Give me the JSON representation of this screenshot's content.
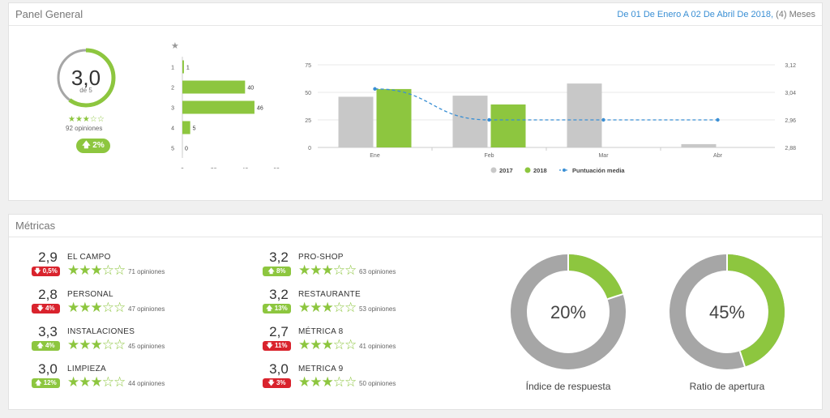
{
  "header": {
    "title": "Panel General",
    "date_range_link": "De 01 De Enero A 02 De Abril De 2018,",
    "date_range_extra": " (4) Meses"
  },
  "summary": {
    "rating": "3,0",
    "rating_sub": "de 5",
    "rating_fraction": 0.6,
    "stars": "★★★☆☆",
    "opinions": "92 opiniones",
    "change": "2%",
    "change_icon": "arrow-up-icon"
  },
  "colors": {
    "green": "#8dc63f",
    "gray": "#c8c8c8",
    "blue": "#3a8fd4",
    "red": "#d9232d",
    "ring_gray": "#a6a6a6"
  },
  "chart_data": [
    {
      "type": "bar",
      "orientation": "horizontal",
      "header_icon": "star-icon",
      "categories": [
        "1",
        "2",
        "3",
        "4",
        "5"
      ],
      "values": [
        1,
        40,
        46,
        5,
        0
      ],
      "xticks": [
        "0",
        "20",
        "40",
        "60"
      ],
      "xlim": [
        0,
        60
      ]
    },
    {
      "type": "bar",
      "categories": [
        "Ene",
        "Feb",
        "Mar",
        "Abr"
      ],
      "series": [
        {
          "name": "2017",
          "type": "bar",
          "values": [
            46,
            47,
            58,
            3
          ]
        },
        {
          "name": "2018",
          "type": "bar",
          "values": [
            53,
            39,
            null,
            null
          ]
        },
        {
          "name": "Puntuación media",
          "type": "line",
          "axis": "right",
          "values": [
            3.05,
            2.96,
            2.96,
            2.96
          ]
        }
      ],
      "yticks_left": [
        "0",
        "25",
        "50",
        "75"
      ],
      "ylim_left": [
        0,
        75
      ],
      "yticks_right": [
        "2,88",
        "2,96",
        "3,04",
        "3,12"
      ],
      "ylim_right": [
        2.88,
        3.12
      ],
      "legend_position": "bottom"
    }
  ],
  "metrics_panel": {
    "title": "Métricas",
    "items": [
      {
        "score": "2,9",
        "name": "EL CAMPO",
        "change": "0,5%",
        "dir": "down",
        "stars": "★★★☆☆",
        "opinions": "71 opiniones"
      },
      {
        "score": "2,8",
        "name": "PERSONAL",
        "change": "4%",
        "dir": "down",
        "stars": "★★★☆☆",
        "opinions": "47 opiniones"
      },
      {
        "score": "3,3",
        "name": "INSTALACIONES",
        "change": "4%",
        "dir": "up",
        "stars": "★★★☆☆",
        "opinions": "45 opiniones"
      },
      {
        "score": "3,0",
        "name": "LIMPIEZA",
        "change": "12%",
        "dir": "up",
        "stars": "★★★☆☆",
        "opinions": "44 opiniones"
      },
      {
        "score": "3,2",
        "name": "PRO-SHOP",
        "change": "8%",
        "dir": "up",
        "stars": "★★★☆☆",
        "opinions": "63 opiniones"
      },
      {
        "score": "3,2",
        "name": "RESTAURANTE",
        "change": "13%",
        "dir": "up",
        "stars": "★★★☆☆",
        "opinions": "53 opiniones"
      },
      {
        "score": "2,7",
        "name": "MÉTRICA 8",
        "change": "11%",
        "dir": "down",
        "stars": "★★★☆☆",
        "opinions": "41 opiniones"
      },
      {
        "score": "3,0",
        "name": "METRICA 9",
        "change": "3%",
        "dir": "down",
        "stars": "★★★☆☆",
        "opinions": "50 opiniones"
      }
    ],
    "donuts": [
      {
        "value": "20%",
        "fraction": 0.2,
        "label": "Índice de respuesta"
      },
      {
        "value": "45%",
        "fraction": 0.45,
        "label": "Ratio de apertura"
      }
    ]
  }
}
